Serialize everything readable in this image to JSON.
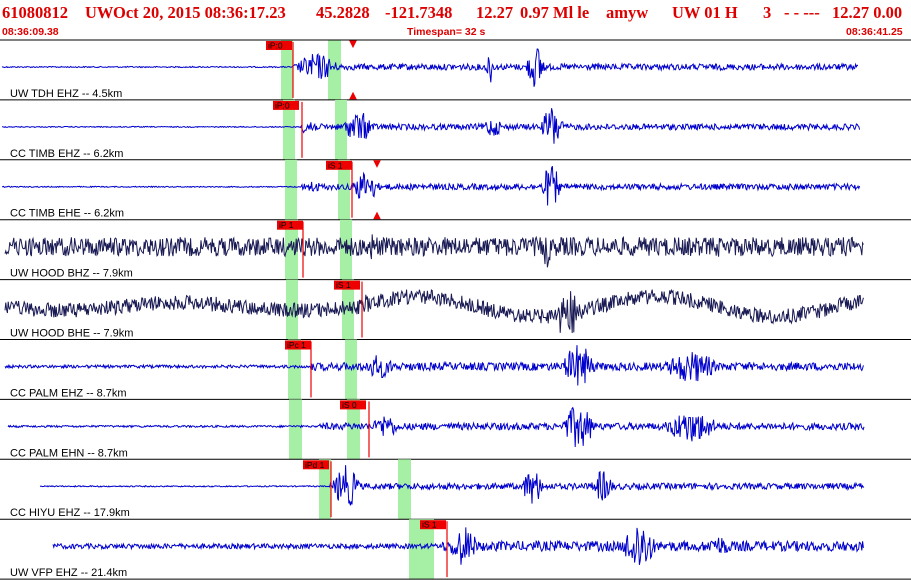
{
  "header": {
    "event_id": "61080812",
    "network": "UW",
    "origin_time": "Oct 20, 2015 08:36:17.23",
    "latitude": "45.2828",
    "longitude": "-121.7348",
    "depth": "12.27",
    "magnitude_type": "0.97 Ml le",
    "analyst": "amyw",
    "review": "UW 01 H",
    "quality": "3",
    "dashes": "- - ---",
    "tail": "12.27 0.00"
  },
  "subheader": {
    "start_time": "08:36:09.38",
    "timespan": "Timespan=  32 s",
    "end_time": "08:36:41.25"
  },
  "colors": {
    "header_text": "#dd0000",
    "trace_blue": "#0000cc",
    "trace_broadband": "#1a1a55",
    "window_green": "#a6f0a6",
    "pick": "#ee0000",
    "separator": "#000000"
  },
  "traces": [
    {
      "label": "UW TDH EHZ -- 4.5km",
      "color": "blue",
      "picks": [
        {
          "tag": "iP:0",
          "kind": "P"
        },
        {
          "tag": "",
          "kind": "S-triangle"
        }
      ]
    },
    {
      "label": "CC TIMB EHZ -- 6.2km",
      "color": "blue",
      "picks": [
        {
          "tag": "iP:0",
          "kind": "P"
        }
      ]
    },
    {
      "label": "CC TIMB EHE -- 6.2km",
      "color": "blue",
      "picks": [
        {
          "tag": "iS 1",
          "kind": "S"
        },
        {
          "tag": "",
          "kind": "S-triangle"
        }
      ]
    },
    {
      "label": "UW HOOD BHZ -- 7.9km",
      "color": "broadband",
      "picks": [
        {
          "tag": "iP 1",
          "kind": "P"
        }
      ]
    },
    {
      "label": "UW HOOD BHE -- 7.9km",
      "color": "broadband",
      "picks": [
        {
          "tag": "iS 1",
          "kind": "S"
        }
      ]
    },
    {
      "label": "CC PALM EHZ -- 8.7km",
      "color": "blue",
      "picks": [
        {
          "tag": "iPc 1",
          "kind": "P"
        }
      ]
    },
    {
      "label": "CC PALM EHN -- 8.7km",
      "color": "blue",
      "picks": [
        {
          "tag": "iS 0",
          "kind": "S"
        }
      ]
    },
    {
      "label": "CC HIYU EHZ -- 17.9km",
      "color": "blue",
      "picks": [
        {
          "tag": "iPd 1",
          "kind": "P"
        }
      ]
    },
    {
      "label": "UW VFP EHZ -- 21.4km",
      "color": "blue",
      "picks": [
        {
          "tag": "iS 1",
          "kind": "S"
        }
      ]
    }
  ]
}
